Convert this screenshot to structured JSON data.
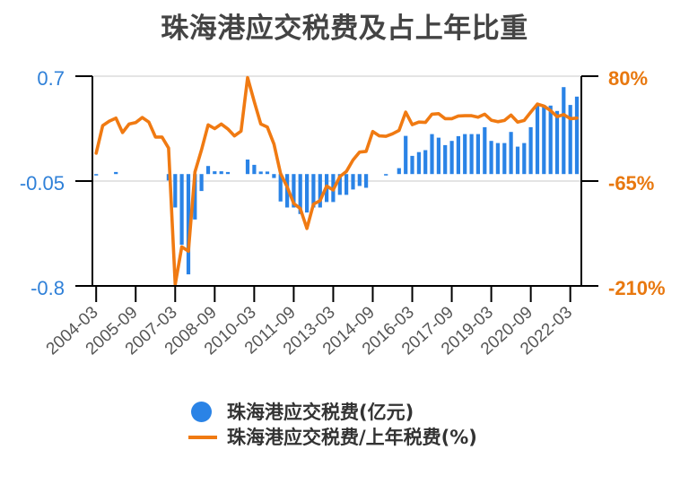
{
  "title": "珠海港应交税费及占上年比重",
  "legend": {
    "position": "bottom",
    "items": [
      {
        "label": "珠海港应交税费(亿元)",
        "marker": "circle-icon"
      },
      {
        "label": "珠海港应交税费/上年税费(%)",
        "marker": "line-icon"
      }
    ]
  },
  "chart_data": {
    "type": "bar",
    "title": "珠海港应交税费及占上年比重",
    "xlabel": "",
    "ylabel": "",
    "grid": true,
    "grid_color": "#e4e4e4",
    "legend_position": "bottom",
    "categories": [
      "2004-03",
      "2004-06",
      "2004-09",
      "2004-12",
      "2005-03",
      "2005-06",
      "2005-09",
      "2005-12",
      "2006-03",
      "2006-06",
      "2006-09",
      "2006-12",
      "2007-03",
      "2007-06",
      "2007-09",
      "2007-12",
      "2008-03",
      "2008-06",
      "2008-09",
      "2008-12",
      "2009-03",
      "2009-06",
      "2009-09",
      "2009-12",
      "2010-03",
      "2010-06",
      "2010-09",
      "2010-12",
      "2011-03",
      "2011-06",
      "2011-09",
      "2011-12",
      "2012-03",
      "2012-06",
      "2012-09",
      "2012-12",
      "2013-03",
      "2013-06",
      "2013-09",
      "2013-12",
      "2014-03",
      "2014-06",
      "2014-09",
      "2014-12",
      "2015-03",
      "2015-06",
      "2015-09",
      "2015-12",
      "2016-03",
      "2016-06",
      "2016-09",
      "2016-12",
      "2017-03",
      "2017-06",
      "2017-09",
      "2017-12",
      "2018-03",
      "2018-06",
      "2018-09",
      "2018-12",
      "2019-03",
      "2019-06",
      "2019-09",
      "2019-12",
      "2020-03",
      "2020-06",
      "2020-09",
      "2020-12",
      "2021-03",
      "2021-06",
      "2021-09",
      "2021-12",
      "2022-03",
      "2022-06"
    ],
    "x_tick_labels": [
      "2004-03",
      "2005-09",
      "2007-03",
      "2008-09",
      "2010-03",
      "2011-09",
      "2013-03",
      "2014-09",
      "2016-03",
      "2017-09",
      "2019-03",
      "2020-09",
      "2022-03"
    ],
    "series": [
      {
        "name": "珠海港应交税费(亿元)",
        "type": "bar",
        "axis": "left",
        "color": "#2a83e6",
        "values": [
          -0.01,
          null,
          null,
          0.015,
          null,
          null,
          null,
          null,
          null,
          null,
          null,
          -0.046,
          -0.239,
          -0.506,
          -0.717,
          -0.325,
          -0.121,
          0.058,
          0.02,
          0.02,
          0.015,
          null,
          null,
          0.104,
          0.066,
          0.018,
          0.018,
          -0.028,
          -0.196,
          -0.239,
          -0.239,
          -0.286,
          -0.275,
          -0.239,
          -0.239,
          -0.2,
          -0.2,
          -0.149,
          -0.149,
          -0.11,
          -0.085,
          -0.098,
          null,
          null,
          -0.01,
          null,
          0.042,
          0.273,
          0.13,
          0.157,
          0.171,
          0.286,
          0.26,
          0.207,
          0.237,
          0.271,
          0.286,
          0.286,
          0.286,
          0.335,
          0.237,
          0.222,
          0.222,
          0.301,
          0.196,
          0.222,
          0.335,
          0.494,
          0.494,
          0.49,
          0.451,
          0.622,
          0.494,
          0.554
        ]
      },
      {
        "name": "珠海港应交税费/上年税费(%)",
        "type": "line",
        "axis": "right",
        "color": "#f07a12",
        "values": [
          -26.5,
          11.7,
          17.9,
          22.0,
          2.1,
          13.8,
          15.8,
          22.9,
          16.6,
          -4.1,
          -4.1,
          -19.4,
          -208,
          -156,
          -162,
          -52.5,
          -22,
          12.7,
          7.5,
          13.8,
          7.0,
          -2.5,
          4.0,
          78,
          44.8,
          13.8,
          9.6,
          -14,
          -54.5,
          -73.2,
          -96,
          -103,
          -130.5,
          -97,
          -92,
          -72,
          -77.4,
          -58.8,
          -51.7,
          -35.9,
          -25,
          -24,
          3.5,
          -2.5,
          -3.2,
          0.3,
          5.0,
          30.3,
          12.9,
          16.5,
          16.0,
          27.5,
          28.2,
          21.2,
          21.2,
          25.0,
          25.3,
          25.3,
          23.2,
          27.4,
          19.1,
          17.0,
          18.8,
          26.2,
          16.6,
          18.8,
          30.3,
          41.5,
          38.6,
          32.4,
          24.1,
          27.0,
          21.2,
          22.0
        ]
      }
    ],
    "y_left": {
      "min": -0.8,
      "max": 0.7,
      "ticks": [
        0.7,
        -0.05,
        -0.8
      ],
      "labels": [
        "0.7",
        "-0.05",
        "-0.8"
      ],
      "color": "#2f80d8"
    },
    "y_right": {
      "min": -210,
      "max": 80,
      "ticks": [
        80,
        -65,
        -210
      ],
      "labels": [
        "80%",
        "-65%",
        "-210%"
      ],
      "color": "#e8780f"
    },
    "x_label_color": "#555555"
  }
}
